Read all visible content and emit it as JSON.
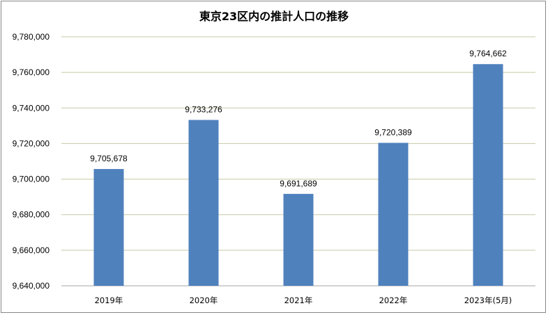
{
  "chart_data": {
    "type": "bar",
    "title": "東京23区内の推計人口の推移",
    "categories": [
      "2019年",
      "2020年",
      "2021年",
      "2022年",
      "2023年(5月)"
    ],
    "series": [
      {
        "values": [
          9705678,
          9733276,
          9691689,
          9720389,
          9764662
        ]
      }
    ],
    "data_labels": [
      "9,705,678",
      "9,733,276",
      "9,691,689",
      "9,720,389",
      "9,764,662"
    ],
    "yticks": [
      "9,640,000",
      "9,660,000",
      "9,680,000",
      "9,700,000",
      "9,720,000",
      "9,740,000",
      "9,760,000",
      "9,780,000"
    ],
    "ylim": [
      9640000,
      9780000
    ],
    "ystep": 20000,
    "grid": true,
    "legend": "none",
    "bar_color": "#4F81BD",
    "grid_color": "#C8C8A8"
  }
}
